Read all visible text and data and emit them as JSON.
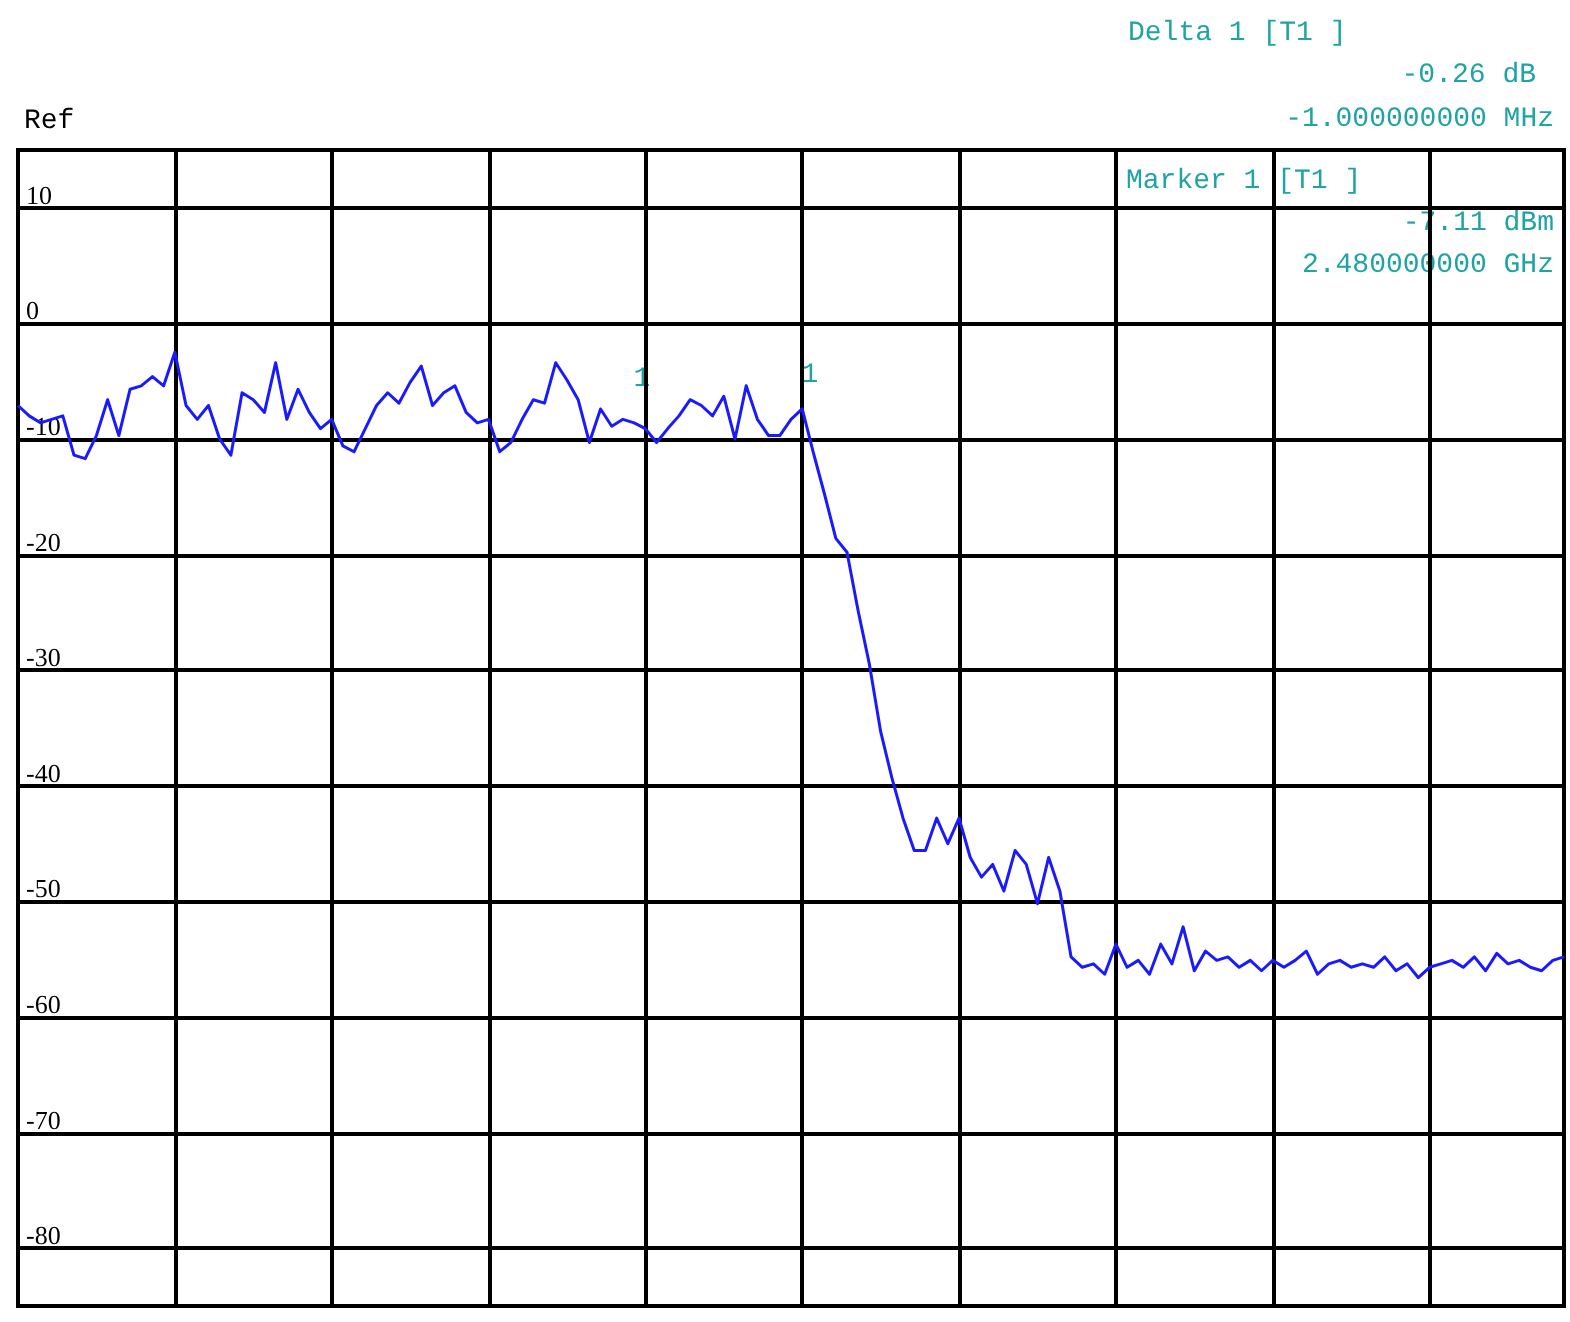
{
  "chart_data": {
    "type": "line",
    "color": "#1a1aff",
    "categories": [
      null,
      null,
      null,
      null,
      null,
      null,
      null,
      null,
      null,
      null,
      null,
      null,
      null,
      null,
      null,
      null,
      null,
      null,
      null,
      null,
      null,
      null,
      null,
      null,
      null,
      null,
      null,
      null,
      null,
      null,
      null,
      null,
      null,
      null,
      null,
      null,
      null,
      null,
      null,
      null,
      null,
      null,
      null,
      null,
      null,
      null,
      null,
      null,
      null,
      null,
      null,
      null,
      null,
      null,
      null,
      null,
      null,
      null,
      null,
      null,
      null,
      null,
      null,
      null,
      null,
      null,
      null,
      null,
      null,
      null,
      null,
      null,
      null,
      null,
      null,
      null,
      null,
      null,
      null,
      null,
      null,
      null,
      null,
      null,
      null,
      null,
      null,
      null,
      null,
      null,
      null,
      null,
      null,
      null,
      null,
      null,
      null,
      null,
      null,
      null,
      null,
      null,
      null,
      null,
      null,
      null,
      null,
      null,
      null,
      null,
      null,
      null,
      null,
      null,
      null,
      null,
      null,
      null,
      null,
      null,
      null,
      null,
      null,
      null,
      null,
      null,
      null,
      null,
      null,
      null,
      null,
      null,
      null,
      null,
      null,
      null,
      null,
      null,
      null
    ],
    "values": [
      -7.1,
      -8,
      -8.6,
      -8.3,
      -8,
      -11.4,
      -11.7,
      -9.7,
      -6.6,
      -9.7,
      -5.7,
      -5.4,
      -4.6,
      -5.4,
      -2.5,
      -7.1,
      -8.3,
      -7.1,
      -10,
      -11.4,
      -6,
      -6.6,
      -7.7,
      -3.4,
      -8.3,
      -5.7,
      -7.7,
      -9.1,
      -8.3,
      -10.6,
      -11.1,
      -9.1,
      -7.1,
      -6,
      -6.9,
      -5.1,
      -3.7,
      -7.1,
      -6,
      -5.4,
      -7.7,
      -8.6,
      -8.3,
      -11.1,
      -10.3,
      -8.3,
      -6.6,
      -6.9,
      -3.4,
      -4.9,
      -6.6,
      -10.3,
      -7.4,
      -8.9,
      -8.3,
      -8.6,
      -9.1,
      -10.3,
      -9.1,
      -8,
      -6.6,
      -7.1,
      -8,
      -6.3,
      -10,
      -5.4,
      -8.3,
      -9.7,
      -9.7,
      -8.3,
      -7.4,
      -11.2,
      -14.8,
      -18.6,
      -19.8,
      -24.9,
      -29.5,
      -35.3,
      -39.3,
      -42.8,
      -45.6,
      -45.6,
      -42.8,
      -45,
      -42.8,
      -46.2,
      -47.9,
      -46.8,
      -49.1,
      -45.6,
      -46.8,
      -50.2,
      -46.2,
      -49.1,
      -54.8,
      -55.7,
      -55.4,
      -56.3,
      -53.7,
      -55.7,
      -55.1,
      -56.3,
      -53.7,
      -55.4,
      -52.2,
      -56,
      -54.3,
      -55.1,
      -54.8,
      -55.7,
      -55.1,
      -56,
      -55.1,
      -55.7,
      -55.1,
      -54.3,
      -56.3,
      -55.4,
      -55.1,
      -55.7,
      -55.4,
      -55.7,
      -54.8,
      -56,
      -55.4,
      -56.6,
      -55.7,
      -55.4,
      -55.1,
      -55.7,
      -54.8,
      -56,
      -54.5,
      -55.4,
      -55.1,
      -55.7,
      -56,
      -55.1,
      -54.8
    ],
    "ylim": [
      -85,
      15
    ],
    "yticks": [
      10,
      0,
      -10,
      -20,
      -30,
      -40,
      -50,
      -60,
      -70,
      -80
    ],
    "grid": true,
    "marker": "none",
    "line_style": "solid",
    "annotations": [
      "Delta 1 [T1 ]",
      "-0.26 dB",
      "-1.000000000 MHz",
      "Ref",
      "Marker 1 [T1 ]",
      "-7.11 dBm",
      "2.480000000 GHz",
      "1",
      "1"
    ]
  }
}
